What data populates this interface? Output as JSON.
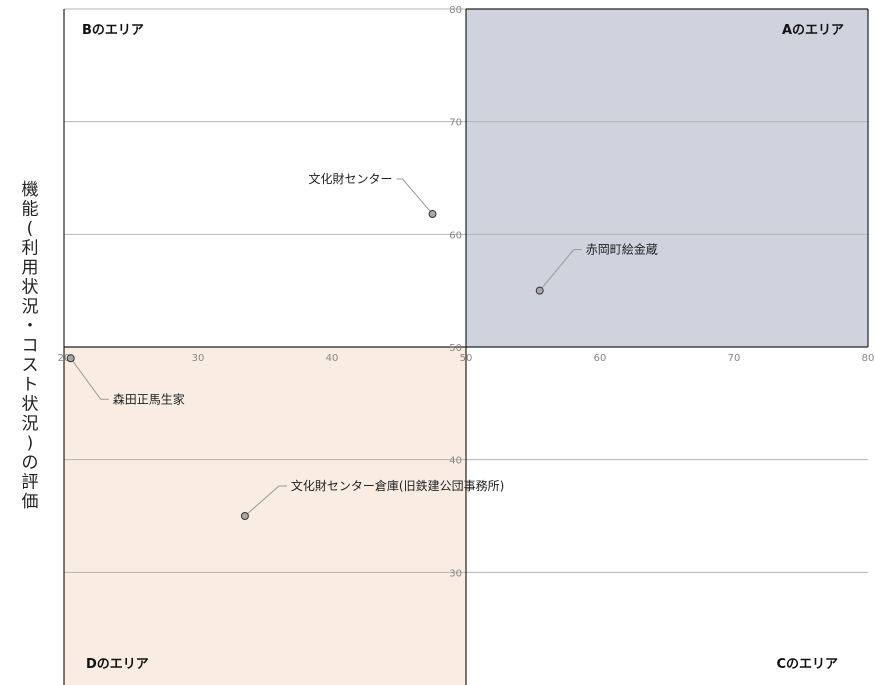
{
  "chart_data": {
    "type": "scatter",
    "ylabel": "機能(利用状況・コスト状況)の評価",
    "xlim": [
      20,
      80
    ],
    "ylim": [
      20,
      80
    ],
    "x_ticks": [
      "20",
      "30",
      "40",
      "50",
      "60",
      "70",
      "80"
    ],
    "y_ticks": [
      "30",
      "40",
      "50",
      "60",
      "70",
      "80"
    ],
    "grid": true,
    "quadrants": {
      "A": {
        "label": "Aのエリア",
        "color": "#ced3dd"
      },
      "B": {
        "label": "Bのエリア",
        "color": "#ffffff"
      },
      "C": {
        "label": "Cのエリア",
        "color": "#ffffff"
      },
      "D": {
        "label": "Dのエリア",
        "color": "#f9ece2"
      }
    },
    "points": [
      {
        "label": "文化財センター",
        "x": 47.5,
        "y": 61.8
      },
      {
        "label": "赤岡町絵金蔵",
        "x": 55.5,
        "y": 55.0
      },
      {
        "label": "森田正馬生家",
        "x": 20.5,
        "y": 49.0
      },
      {
        "label": "文化財センター倉庫(旧鉄建公団事務所)",
        "x": 33.5,
        "y": 35.0
      }
    ]
  }
}
